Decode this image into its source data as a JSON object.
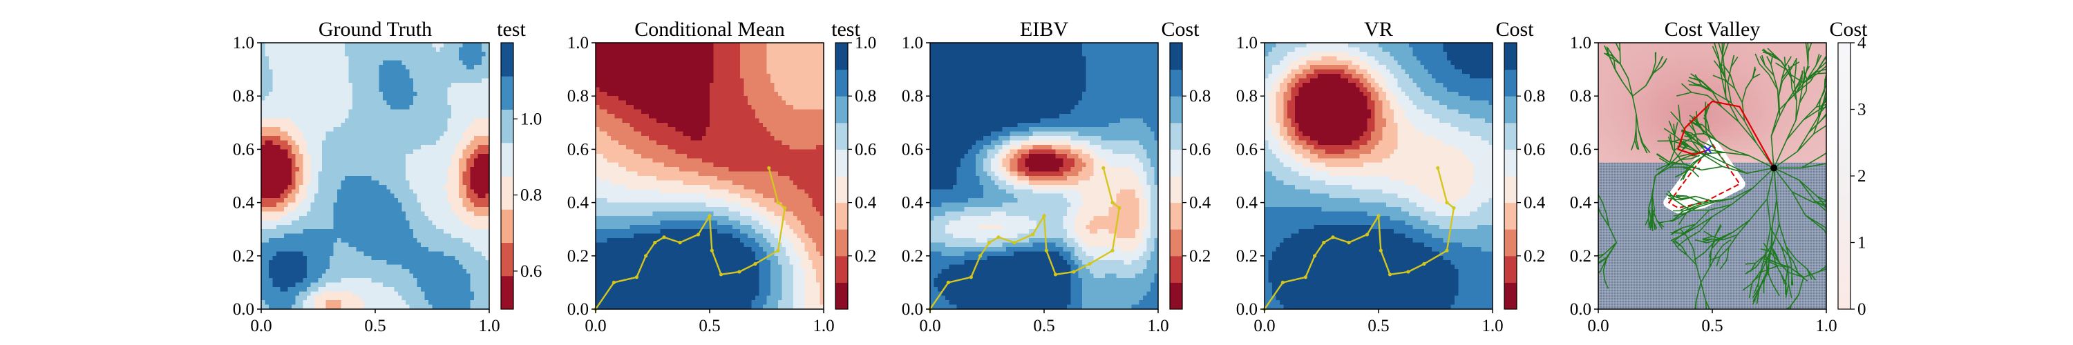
{
  "chart_data": [
    {
      "type": "heatmap",
      "title": "Ground Truth",
      "colorbar_title": "test",
      "colormap": "RdBu",
      "x_ticks": [
        "0.0",
        "0.5",
        "1.0"
      ],
      "y_ticks": [
        "0.0",
        "0.2",
        "0.4",
        "0.6",
        "0.8",
        "1.0"
      ],
      "xlim": [
        0,
        1
      ],
      "ylim": [
        0,
        1
      ],
      "colorbar_ticks": [
        "0.6",
        "0.8",
        "1.0"
      ],
      "colorbar_range": [
        0.5,
        1.2
      ],
      "levels": 8,
      "red_blobs": [
        [
          0.04,
          0.52
        ],
        [
          0.98,
          0.5
        ],
        [
          0.28,
          0.02
        ]
      ],
      "path": []
    },
    {
      "type": "heatmap",
      "title": "Conditional Mean",
      "colorbar_title": "test",
      "colormap": "RdBu",
      "x_ticks": [
        "0.0",
        "0.5",
        "1.0"
      ],
      "y_ticks": [
        "0.0",
        "0.2",
        "0.4",
        "0.6",
        "0.8",
        "1.0"
      ],
      "xlim": [
        0,
        1
      ],
      "ylim": [
        0,
        1
      ],
      "colorbar_ticks": [
        "0.2",
        "0.4",
        "0.6",
        "0.8",
        "1.0"
      ],
      "colorbar_range": [
        0.0,
        1.0
      ],
      "levels": 10,
      "path": [
        [
          0.0,
          0.0
        ],
        [
          0.08,
          0.1
        ],
        [
          0.18,
          0.12
        ],
        [
          0.22,
          0.2
        ],
        [
          0.26,
          0.25
        ],
        [
          0.3,
          0.27
        ],
        [
          0.37,
          0.25
        ],
        [
          0.45,
          0.28
        ],
        [
          0.5,
          0.35
        ],
        [
          0.51,
          0.22
        ],
        [
          0.55,
          0.13
        ],
        [
          0.63,
          0.14
        ],
        [
          0.7,
          0.17
        ],
        [
          0.8,
          0.22
        ],
        [
          0.83,
          0.38
        ],
        [
          0.8,
          0.4
        ],
        [
          0.76,
          0.53
        ]
      ]
    },
    {
      "type": "heatmap",
      "title": "EIBV",
      "colorbar_title": "Cost",
      "colormap": "RdBu",
      "x_ticks": [
        "0.0",
        "0.5",
        "1.0"
      ],
      "y_ticks": [
        "0.0",
        "0.2",
        "0.4",
        "0.6",
        "0.8",
        "1.0"
      ],
      "xlim": [
        0,
        1
      ],
      "ylim": [
        0,
        1
      ],
      "colorbar_ticks": [
        "0.2",
        "0.4",
        "0.6",
        "0.8"
      ],
      "colorbar_range": [
        0.0,
        1.0
      ],
      "levels": 10,
      "path": [
        [
          0.0,
          0.0
        ],
        [
          0.08,
          0.1
        ],
        [
          0.18,
          0.12
        ],
        [
          0.22,
          0.2
        ],
        [
          0.26,
          0.25
        ],
        [
          0.3,
          0.27
        ],
        [
          0.37,
          0.25
        ],
        [
          0.45,
          0.28
        ],
        [
          0.5,
          0.35
        ],
        [
          0.51,
          0.22
        ],
        [
          0.55,
          0.13
        ],
        [
          0.63,
          0.14
        ],
        [
          0.7,
          0.17
        ],
        [
          0.8,
          0.22
        ],
        [
          0.83,
          0.38
        ],
        [
          0.8,
          0.4
        ],
        [
          0.76,
          0.53
        ]
      ]
    },
    {
      "type": "heatmap",
      "title": "VR",
      "colorbar_title": "Cost",
      "colormap": "RdBu",
      "x_ticks": [
        "0.0",
        "0.5",
        "1.0"
      ],
      "y_ticks": [
        "0.0",
        "0.2",
        "0.4",
        "0.6",
        "0.8",
        "1.0"
      ],
      "xlim": [
        0,
        1
      ],
      "ylim": [
        0,
        1
      ],
      "colorbar_ticks": [
        "0.2",
        "0.4",
        "0.6",
        "0.8"
      ],
      "colorbar_range": [
        0.0,
        1.0
      ],
      "levels": 10,
      "path": [
        [
          0.0,
          0.0
        ],
        [
          0.08,
          0.1
        ],
        [
          0.18,
          0.12
        ],
        [
          0.22,
          0.2
        ],
        [
          0.26,
          0.25
        ],
        [
          0.3,
          0.27
        ],
        [
          0.37,
          0.25
        ],
        [
          0.45,
          0.28
        ],
        [
          0.5,
          0.35
        ],
        [
          0.51,
          0.22
        ],
        [
          0.55,
          0.13
        ],
        [
          0.63,
          0.14
        ],
        [
          0.7,
          0.17
        ],
        [
          0.8,
          0.22
        ],
        [
          0.83,
          0.38
        ],
        [
          0.8,
          0.4
        ],
        [
          0.76,
          0.53
        ]
      ]
    },
    {
      "type": "heatmap",
      "title": "Cost Valley",
      "colorbar_title": "Cost",
      "colormap": "Reds",
      "x_ticks": [
        "0.0",
        "0.5",
        "1.0"
      ],
      "y_ticks": [
        "0.0",
        "0.2",
        "0.4",
        "0.6",
        "0.8",
        "1.0"
      ],
      "xlim": [
        0,
        1
      ],
      "ylim": [
        0,
        1
      ],
      "colorbar_ticks": [
        "0",
        "1",
        "2",
        "3",
        "4"
      ],
      "colorbar_range": [
        0,
        4
      ],
      "valley_point": [
        0.77,
        0.53
      ],
      "obstacle_polygon": [
        [
          0.5,
          0.62
        ],
        [
          0.62,
          0.47
        ],
        [
          0.46,
          0.4
        ],
        [
          0.35,
          0.38
        ],
        [
          0.31,
          0.4
        ]
      ],
      "obstacle_region_below_y": 0.55,
      "colors": {
        "tree": "#1f7a1f",
        "best_path": "#e00000",
        "hatch": "#4a6a8f"
      }
    }
  ]
}
